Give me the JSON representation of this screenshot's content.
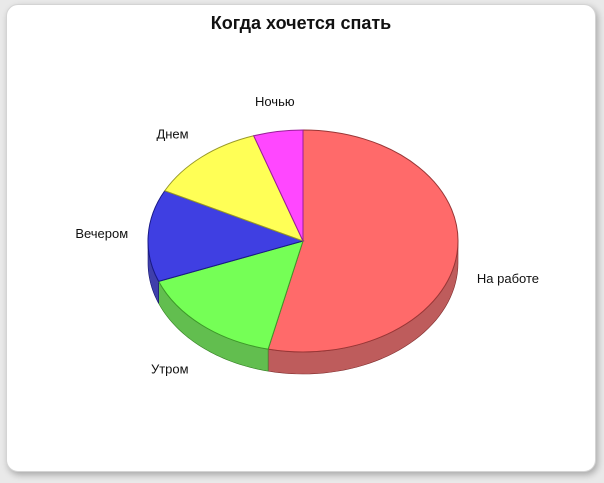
{
  "chart_data": {
    "type": "pie",
    "title": "Когда хочется спать",
    "three_d": true,
    "legend": "none",
    "slices": [
      {
        "label": "На работе",
        "value": 52,
        "color": "#ff5a5a"
      },
      {
        "label": "Утром",
        "value": 15,
        "color": "#66ff44"
      },
      {
        "label": "Вечером",
        "value": 13,
        "color": "#2a2adf"
      },
      {
        "label": "Днем",
        "value": 12,
        "color": "#ffff44"
      },
      {
        "label": "Ночью",
        "value": 5,
        "color": "#ff33ff"
      }
    ]
  }
}
